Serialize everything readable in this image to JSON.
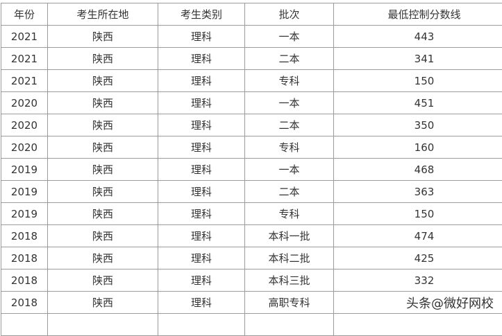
{
  "headers": [
    "年份",
    "考生所在地",
    "考生类别",
    "批次",
    "最低控制分数线"
  ],
  "rows": [
    [
      "2021",
      "陕西",
      "理科",
      "一本",
      "443"
    ],
    [
      "2021",
      "陕西",
      "理科",
      "二本",
      "341"
    ],
    [
      "2021",
      "陕西",
      "理科",
      "专科",
      "150"
    ],
    [
      "2020",
      "陕西",
      "理科",
      "一本",
      "451"
    ],
    [
      "2020",
      "陕西",
      "理科",
      "二本",
      "350"
    ],
    [
      "2020",
      "陕西",
      "理科",
      "专科",
      "160"
    ],
    [
      "2019",
      "陕西",
      "理科",
      "一本",
      "468"
    ],
    [
      "2019",
      "陕西",
      "理科",
      "二本",
      "363"
    ],
    [
      "2019",
      "陕西",
      "理科",
      "专科",
      "150"
    ],
    [
      "2018",
      "陕西",
      "理科",
      "本科一批",
      "474"
    ],
    [
      "2018",
      "陕西",
      "理科",
      "本科二批",
      "425"
    ],
    [
      "2018",
      "陕西",
      "理科",
      "本科三批",
      "332"
    ],
    [
      "2018",
      "陕西",
      "理科",
      "高职专科",
      ""
    ]
  ],
  "watermark": "头条@微好网校"
}
